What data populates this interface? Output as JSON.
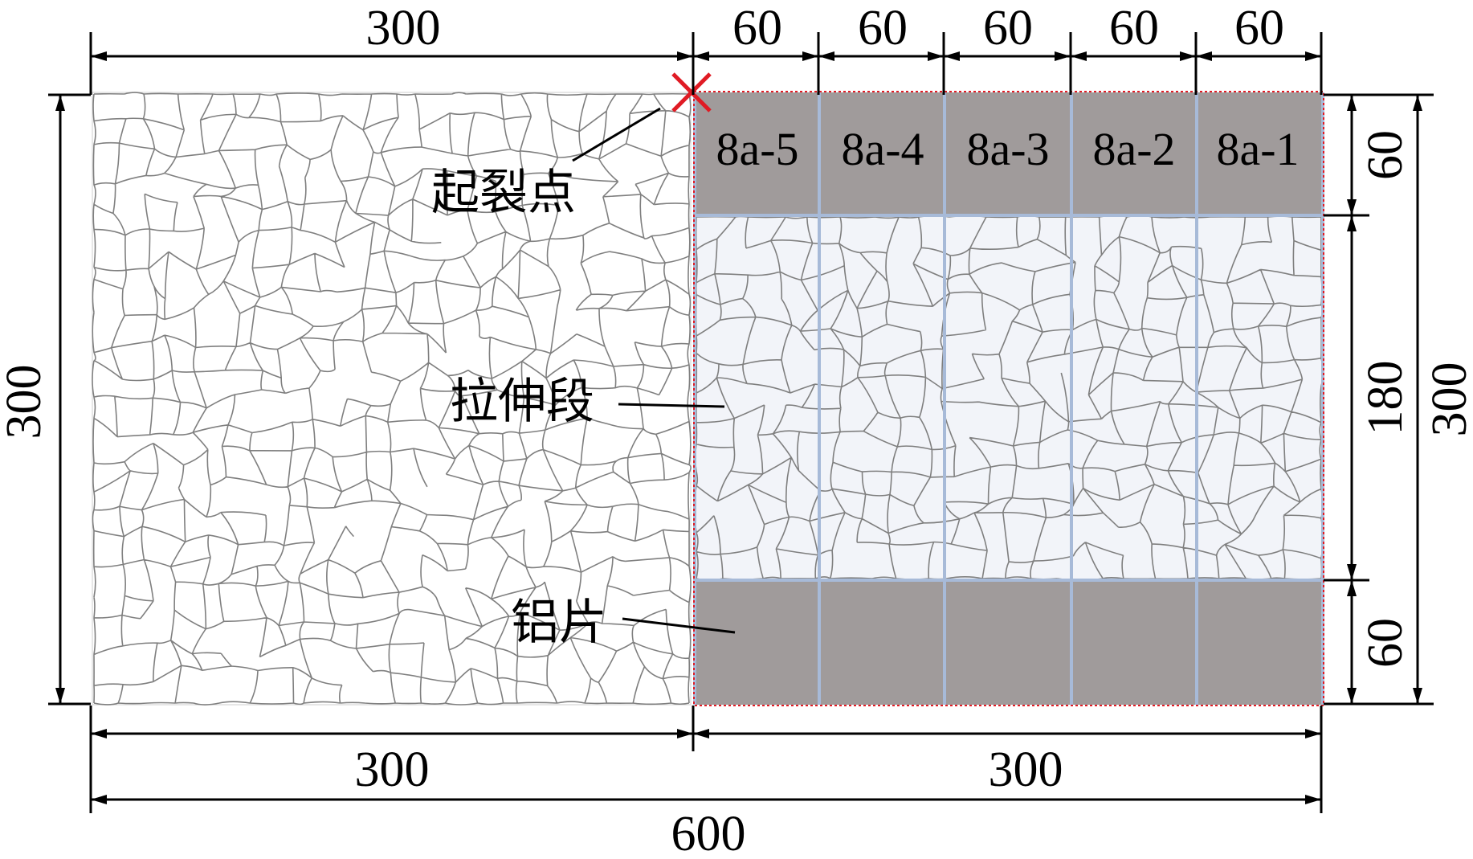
{
  "top_dims": {
    "left": "300",
    "segments": [
      "60",
      "60",
      "60",
      "60",
      "60"
    ]
  },
  "left_dim": "300",
  "right_dims": {
    "top_tab": "60",
    "middle": "180",
    "bottom_tab": "60",
    "total": "300"
  },
  "bottom_dims": {
    "left": "300",
    "right": "300",
    "total": "600"
  },
  "segments": [
    "8a-5",
    "8a-4",
    "8a-3",
    "8a-2",
    "8a-1"
  ],
  "labels": {
    "crack_origin": "起裂点",
    "tension_zone": "拉伸段",
    "aluminum_tab": "铝片"
  },
  "colors": {
    "tab_fill": "#a09b9b",
    "segment_border": "#a7bad8",
    "zone_fill": "#f2f4f9",
    "crack_line": "#7f7f7f",
    "marker": "#e01b24",
    "zone_outline": "#e01b24"
  }
}
